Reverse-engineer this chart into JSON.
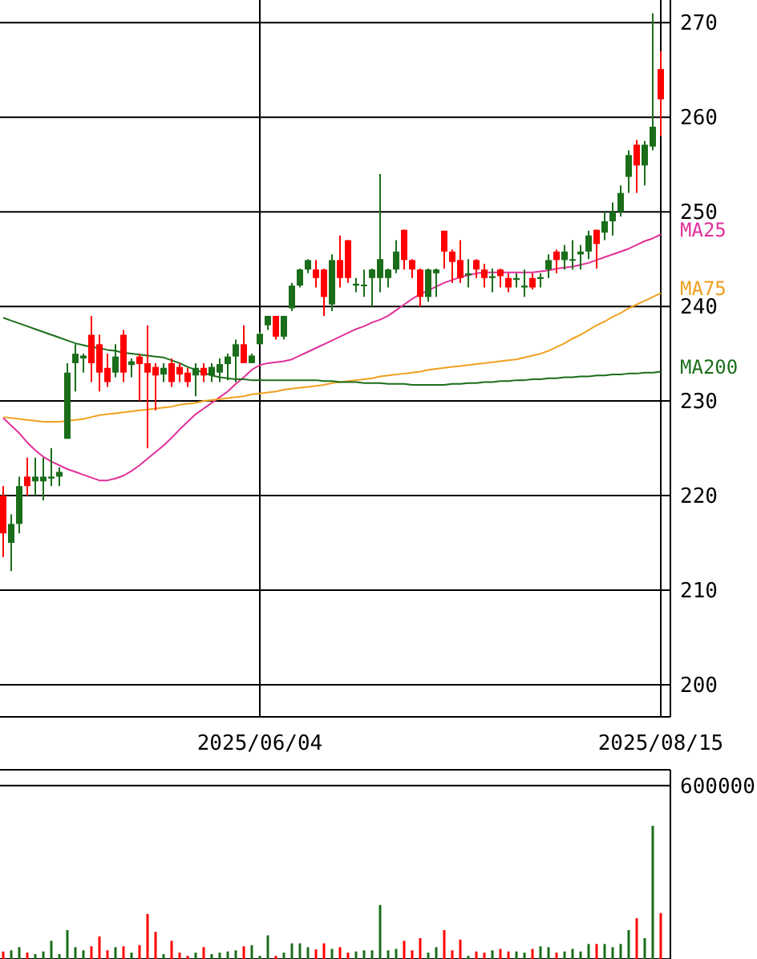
{
  "chart_data": [
    {
      "type": "candlestick",
      "categories": [
        null,
        null,
        null,
        null,
        null,
        null,
        null,
        null,
        null,
        null,
        null,
        null,
        null,
        null,
        null,
        null,
        null,
        null,
        null,
        null,
        null,
        null,
        null,
        null,
        null,
        null,
        null,
        null,
        null,
        null,
        null,
        null,
        "2025/06/04",
        null,
        null,
        null,
        null,
        null,
        null,
        null,
        null,
        null,
        null,
        null,
        null,
        null,
        null,
        null,
        null,
        null,
        null,
        null,
        null,
        null,
        null,
        null,
        null,
        null,
        null,
        null,
        null,
        null,
        null,
        null,
        null,
        null,
        null,
        null,
        null,
        null,
        null,
        null,
        null,
        null,
        null,
        null,
        null,
        null,
        null,
        null,
        null,
        null,
        "2025/08/15"
      ],
      "ohlc": [
        [
          220,
          221,
          213.5,
          216
        ],
        [
          215,
          218,
          212,
          217
        ],
        [
          217,
          222,
          216,
          221
        ],
        [
          222,
          224,
          220,
          221
        ],
        [
          221.5,
          224,
          220,
          222
        ],
        [
          221.5,
          224,
          219.5,
          222
        ],
        [
          221.8,
          225,
          221,
          222
        ],
        [
          222,
          223,
          221,
          222.5
        ],
        [
          226,
          234,
          226,
          233
        ],
        [
          234,
          236,
          231,
          235
        ],
        [
          234.5,
          235,
          233,
          234.8
        ],
        [
          237,
          239,
          232,
          234
        ],
        [
          236,
          237,
          231,
          233
        ],
        [
          233.5,
          235,
          231.5,
          232
        ],
        [
          233,
          236,
          232.5,
          234.7
        ],
        [
          237,
          237.5,
          232,
          233
        ],
        [
          233.8,
          234.5,
          232.5,
          234.2
        ],
        [
          234.7,
          235,
          230,
          233.9
        ],
        [
          234,
          238,
          225,
          233
        ],
        [
          233.6,
          234,
          229,
          232.7
        ],
        [
          232.8,
          234,
          232,
          233.5
        ],
        [
          234,
          234.5,
          231.5,
          232
        ],
        [
          233.6,
          234,
          232,
          232.8
        ],
        [
          233,
          233.5,
          231.5,
          232
        ],
        [
          232.7,
          234,
          230.5,
          233.5
        ],
        [
          233.5,
          234,
          232,
          232.7
        ],
        [
          232.7,
          234,
          232,
          233.6
        ],
        [
          233,
          234.5,
          232,
          233.9
        ],
        [
          233.9,
          235,
          232.2,
          234.7
        ],
        [
          234.7,
          236.5,
          232,
          236
        ],
        [
          236,
          238,
          234,
          234
        ],
        [
          234,
          235,
          234,
          234.8
        ],
        [
          236,
          237.3,
          236,
          237.1
        ],
        [
          238,
          239,
          237.5,
          239
        ],
        [
          239,
          239,
          236.5,
          236.8
        ],
        [
          236.8,
          239,
          236.5,
          239
        ],
        [
          239.8,
          242.5,
          239.5,
          242.2
        ],
        [
          242.2,
          244,
          242,
          243.9
        ],
        [
          243.9,
          245,
          243.5,
          244.9
        ],
        [
          243.9,
          244.9,
          242,
          243
        ],
        [
          243.9,
          244,
          239,
          241
        ],
        [
          240.2,
          245.5,
          239.5,
          244.9
        ],
        [
          244.9,
          247.5,
          242,
          243
        ],
        [
          247,
          247,
          242.5,
          243
        ],
        [
          242.2,
          243,
          241.5,
          242.4
        ],
        [
          242.2,
          243.9,
          241,
          242.3
        ],
        [
          243,
          244,
          240,
          243.9
        ],
        [
          243,
          254,
          241.5,
          245
        ],
        [
          243,
          244,
          242,
          243.9
        ],
        [
          243.9,
          247,
          243.5,
          245.8
        ],
        [
          248.1,
          248.1,
          243.9,
          244.9
        ],
        [
          244.9,
          245,
          243,
          243.9
        ],
        [
          243.9,
          244,
          240,
          241
        ],
        [
          241,
          244,
          240.5,
          243.9
        ],
        [
          243.5,
          244,
          241,
          243.9
        ],
        [
          248,
          248,
          244,
          245.8
        ],
        [
          245.8,
          246,
          242.5,
          244.7
        ],
        [
          244.9,
          247,
          242.5,
          243
        ],
        [
          243.3,
          245,
          242,
          243.5
        ],
        [
          244.9,
          245,
          243,
          243.9
        ],
        [
          243.9,
          244.5,
          242,
          243
        ],
        [
          243,
          244,
          241.5,
          243.2
        ],
        [
          243.9,
          244,
          242,
          243.2
        ],
        [
          243,
          243.5,
          241.5,
          242
        ],
        [
          242.8,
          243.5,
          242,
          243
        ],
        [
          242,
          243.9,
          241,
          242.2
        ],
        [
          243,
          243.5,
          241.8,
          242
        ],
        [
          242.9,
          243.5,
          242,
          243.1
        ],
        [
          243.9,
          245.5,
          243,
          244.9
        ],
        [
          245.8,
          246,
          243.5,
          244.9
        ],
        [
          244.9,
          246.5,
          243.9,
          245.8
        ],
        [
          244.9,
          247,
          243.9,
          245
        ],
        [
          245.5,
          246.5,
          243.9,
          245.8
        ],
        [
          245.8,
          248,
          245,
          247.5
        ],
        [
          248.1,
          248.1,
          244,
          246.6
        ],
        [
          247.8,
          250,
          247,
          249
        ],
        [
          249,
          251,
          247.5,
          250
        ],
        [
          250,
          252.8,
          249.5,
          252
        ],
        [
          253.7,
          256.5,
          252,
          256
        ],
        [
          257.1,
          257.6,
          252,
          254.9
        ],
        [
          254.9,
          257.5,
          252.8,
          257.1
        ],
        [
          256.9,
          271,
          256.5,
          259
        ],
        [
          265.1,
          267,
          258,
          261.9
        ]
      ],
      "colors": [
        "#ff0000",
        "#1a6e1a",
        "#1a6e1a",
        "#ff0000",
        "#1a6e1a",
        "#1a6e1a",
        "#1a6e1a",
        "#1a6e1a",
        "#1a6e1a",
        "#1a6e1a",
        "#1a6e1a",
        "#ff0000",
        "#ff0000",
        "#ff0000",
        "#1a6e1a",
        "#ff0000",
        "#1a6e1a",
        "#ff0000",
        "#ff0000",
        "#ff0000",
        "#1a6e1a",
        "#ff0000",
        "#ff0000",
        "#ff0000",
        "#1a6e1a",
        "#ff0000",
        "#1a6e1a",
        "#1a6e1a",
        "#1a6e1a",
        "#1a6e1a",
        "#ff0000",
        "#1a6e1a",
        "#1a6e1a",
        "#1a6e1a",
        "#ff0000",
        "#1a6e1a",
        "#1a6e1a",
        "#1a6e1a",
        "#1a6e1a",
        "#ff0000",
        "#ff0000",
        "#1a6e1a",
        "#ff0000",
        "#ff0000",
        "#1a6e1a",
        "#1a6e1a",
        "#1a6e1a",
        "#1a6e1a",
        "#1a6e1a",
        "#1a6e1a",
        "#ff0000",
        "#ff0000",
        "#ff0000",
        "#1a6e1a",
        "#1a6e1a",
        "#ff0000",
        "#ff0000",
        "#ff0000",
        "#1a6e1a",
        "#ff0000",
        "#ff0000",
        "#1a6e1a",
        "#ff0000",
        "#ff0000",
        "#1a6e1a",
        "#1a6e1a",
        "#ff0000",
        "#1a6e1a",
        "#1a6e1a",
        "#ff0000",
        "#1a6e1a",
        "#1a6e1a",
        "#1a6e1a",
        "#1a6e1a",
        "#ff0000",
        "#1a6e1a",
        "#1a6e1a",
        "#1a6e1a",
        "#1a6e1a",
        "#ff0000",
        "#1a6e1a",
        "#1a6e1a",
        "#ff0000"
      ],
      "series": [
        {
          "name": "MA25",
          "type": "line",
          "color": "#e0309a",
          "values": [
            228.2,
            227.4,
            226.6,
            225.6,
            224.8,
            224.1,
            223.6,
            223.2,
            222.8,
            222.5,
            222.2,
            221.9,
            221.6,
            221.6,
            221.8,
            222.1,
            222.6,
            223.2,
            223.9,
            224.6,
            225.3,
            226.1,
            227,
            227.8,
            228.6,
            229.2,
            229.8,
            230.4,
            231,
            231.8,
            232.5,
            233.3,
            233.8,
            234,
            234.1,
            234.2,
            234.4,
            234.8,
            235.2,
            235.6,
            236,
            236.4,
            236.8,
            237.2,
            237.6,
            237.9,
            238.3,
            238.6,
            239,
            239.6,
            240.2,
            240.8,
            241.3,
            241.7,
            242.1,
            242.5,
            242.8,
            243.1,
            243.3,
            243.5,
            243.6,
            243.6,
            243.6,
            243.6,
            243.6,
            243.6,
            243.6,
            243.7,
            243.8,
            244,
            244.1,
            244.2,
            244.4,
            244.6,
            244.9,
            245.2,
            245.5,
            245.8,
            246.1,
            246.5,
            246.9,
            247.2,
            247.6
          ]
        },
        {
          "name": "MA75",
          "type": "line",
          "color": "#f0a020",
          "values": [
            228.3,
            228.2,
            228.1,
            228,
            227.9,
            227.8,
            227.8,
            227.8,
            227.9,
            228,
            228.1,
            228.3,
            228.5,
            228.6,
            228.7,
            228.8,
            228.9,
            229,
            229.1,
            229.2,
            229.3,
            229.4,
            229.6,
            229.7,
            229.8,
            230,
            230.1,
            230.2,
            230.3,
            230.4,
            230.5,
            230.7,
            230.8,
            230.9,
            231,
            231.2,
            231.3,
            231.4,
            231.5,
            231.6,
            231.7,
            231.9,
            232,
            232.1,
            232.2,
            232.3,
            232.4,
            232.6,
            232.7,
            232.8,
            232.9,
            233,
            233.1,
            233.3,
            233.4,
            233.5,
            233.6,
            233.7,
            233.8,
            233.9,
            234,
            234.1,
            234.2,
            234.3,
            234.4,
            234.6,
            234.8,
            235,
            235.3,
            235.7,
            236.1,
            236.6,
            237,
            237.5,
            238,
            238.4,
            238.9,
            239.3,
            239.8,
            240.2,
            240.6,
            241,
            241.4
          ]
        },
        {
          "name": "MA200",
          "type": "line",
          "color": "#1a6e1a",
          "values": [
            238.8,
            238.5,
            238.2,
            237.9,
            237.6,
            237.3,
            237,
            236.7,
            236.4,
            236.1,
            235.9,
            235.7,
            235.6,
            235.4,
            235.3,
            235.1,
            235,
            234.9,
            234.8,
            234.7,
            234.6,
            234.3,
            234,
            233.6,
            233.3,
            233,
            232.7,
            232.5,
            232.4,
            232.3,
            232.3,
            232.2,
            232.2,
            232.2,
            232.2,
            232.2,
            232.2,
            232.2,
            232.2,
            232.2,
            232.1,
            232.1,
            232,
            232,
            232,
            231.9,
            231.9,
            231.9,
            231.8,
            231.8,
            231.8,
            231.7,
            231.7,
            231.7,
            231.7,
            231.7,
            231.8,
            231.8,
            231.9,
            231.9,
            232,
            232,
            232.1,
            232.1,
            232.2,
            232.2,
            232.3,
            232.3,
            232.4,
            232.4,
            232.5,
            232.5,
            232.6,
            232.6,
            232.7,
            232.7,
            232.8,
            232.8,
            232.9,
            232.9,
            233,
            233,
            233.1
          ]
        }
      ],
      "ylim": [
        196.6,
        272.4
      ],
      "yticks": [
        200,
        210,
        220,
        230,
        240,
        250,
        260,
        270
      ],
      "grid": true,
      "legend": false,
      "marker": "none"
    },
    {
      "type": "bar",
      "categories": [
        null,
        null,
        null,
        null,
        null,
        null,
        null,
        null,
        null,
        null,
        null,
        null,
        null,
        null,
        null,
        null,
        null,
        null,
        null,
        null,
        null,
        null,
        null,
        null,
        null,
        null,
        null,
        null,
        null,
        null,
        null,
        null,
        null,
        null,
        null,
        null,
        null,
        null,
        null,
        null,
        null,
        null,
        null,
        null,
        null,
        null,
        null,
        null,
        null,
        null,
        null,
        null,
        null,
        null,
        null,
        null,
        null,
        null,
        null,
        null,
        null,
        null,
        null,
        null,
        null,
        null,
        null,
        null,
        null,
        null,
        null,
        null,
        null,
        null,
        null,
        null,
        null,
        null,
        null,
        null,
        null,
        null,
        null
      ],
      "values": [
        26000,
        30000,
        41000,
        22000,
        17000,
        26000,
        63000,
        17000,
        100000,
        41000,
        30000,
        44000,
        78000,
        30000,
        41000,
        44000,
        22000,
        48000,
        156000,
        94000,
        17000,
        63000,
        22000,
        11000,
        22000,
        41000,
        17000,
        22000,
        26000,
        30000,
        44000,
        48000,
        11000,
        82000,
        11000,
        22000,
        54000,
        54000,
        41000,
        33000,
        54000,
        35000,
        41000,
        22000,
        26000,
        30000,
        30000,
        187000,
        30000,
        35000,
        63000,
        30000,
        72000,
        22000,
        41000,
        100000,
        30000,
        67000,
        11000,
        26000,
        22000,
        30000,
        35000,
        26000,
        26000,
        22000,
        35000,
        44000,
        41000,
        22000,
        26000,
        35000,
        26000,
        52000,
        52000,
        52000,
        41000,
        52000,
        100000,
        141000,
        72000,
        461000,
        159000
      ],
      "colors": [
        "#ff0000",
        "#1a6e1a",
        "#1a6e1a",
        "#ff0000",
        "#1a6e1a",
        "#1a6e1a",
        "#1a6e1a",
        "#1a6e1a",
        "#1a6e1a",
        "#1a6e1a",
        "#1a6e1a",
        "#ff0000",
        "#ff0000",
        "#ff0000",
        "#1a6e1a",
        "#ff0000",
        "#1a6e1a",
        "#ff0000",
        "#ff0000",
        "#ff0000",
        "#1a6e1a",
        "#ff0000",
        "#ff0000",
        "#ff0000",
        "#1a6e1a",
        "#ff0000",
        "#1a6e1a",
        "#1a6e1a",
        "#1a6e1a",
        "#1a6e1a",
        "#ff0000",
        "#1a6e1a",
        "#1a6e1a",
        "#1a6e1a",
        "#ff0000",
        "#1a6e1a",
        "#1a6e1a",
        "#1a6e1a",
        "#1a6e1a",
        "#ff0000",
        "#ff0000",
        "#1a6e1a",
        "#ff0000",
        "#ff0000",
        "#1a6e1a",
        "#1a6e1a",
        "#1a6e1a",
        "#1a6e1a",
        "#1a6e1a",
        "#1a6e1a",
        "#ff0000",
        "#ff0000",
        "#ff0000",
        "#1a6e1a",
        "#1a6e1a",
        "#ff0000",
        "#ff0000",
        "#ff0000",
        "#1a6e1a",
        "#ff0000",
        "#ff0000",
        "#1a6e1a",
        "#ff0000",
        "#ff0000",
        "#1a6e1a",
        "#1a6e1a",
        "#ff0000",
        "#1a6e1a",
        "#1a6e1a",
        "#ff0000",
        "#1a6e1a",
        "#1a6e1a",
        "#1a6e1a",
        "#1a6e1a",
        "#ff0000",
        "#1a6e1a",
        "#1a6e1a",
        "#1a6e1a",
        "#1a6e1a",
        "#ff0000",
        "#1a6e1a",
        "#1a6e1a",
        "#ff0000"
      ],
      "ylim": [
        0,
        655000
      ],
      "yticks": [
        600000
      ],
      "grid": true
    }
  ]
}
